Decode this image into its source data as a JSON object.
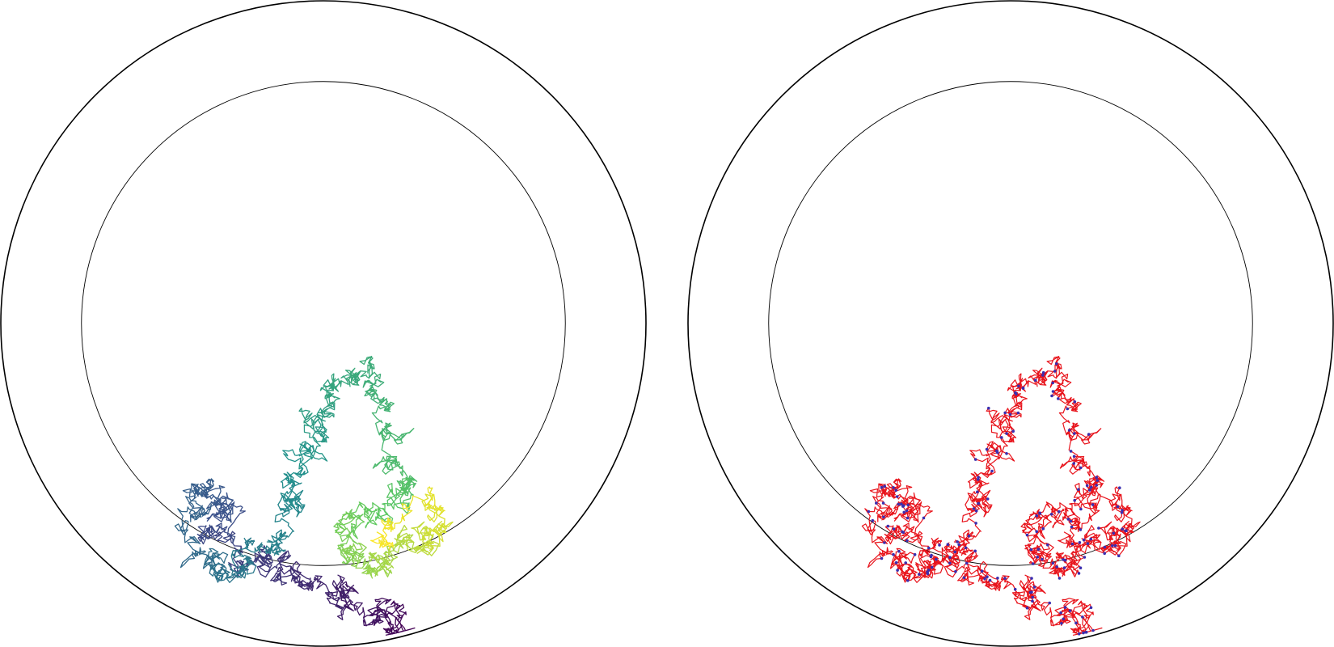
{
  "chart_data": [
    {
      "type": "line",
      "panel": "left",
      "description_color_mode": "viridis-by-time",
      "boundary": {
        "outer_radius": 1.0,
        "inner_radius": 0.75,
        "shape": "circle"
      },
      "xlim": [
        -1.0,
        1.0
      ],
      "ylim": [
        -1.0,
        1.0
      ],
      "grid": false,
      "legend": "none",
      "colormap": [
        "#440154",
        "#3b528b",
        "#21918c",
        "#5ec962",
        "#fde725"
      ],
      "path_waypoints": [
        [
          0.25,
          -0.97
        ],
        [
          0.22,
          -0.92
        ],
        [
          0.15,
          -0.88
        ],
        [
          0.05,
          -0.82
        ],
        [
          -0.05,
          -0.8
        ],
        [
          -0.12,
          -0.74
        ],
        [
          -0.25,
          -0.72
        ],
        [
          -0.35,
          -0.66
        ],
        [
          -0.28,
          -0.58
        ],
        [
          -0.35,
          -0.52
        ],
        [
          -0.42,
          -0.6
        ],
        [
          -0.38,
          -0.74
        ],
        [
          -0.3,
          -0.8
        ],
        [
          -0.2,
          -0.7
        ],
        [
          -0.1,
          -0.62
        ],
        [
          -0.12,
          -0.5
        ],
        [
          -0.05,
          -0.4
        ],
        [
          -0.02,
          -0.3
        ],
        [
          0.05,
          -0.2
        ],
        [
          0.12,
          -0.15
        ],
        [
          0.18,
          -0.25
        ],
        [
          0.22,
          -0.4
        ],
        [
          0.28,
          -0.5
        ],
        [
          0.2,
          -0.58
        ],
        [
          0.1,
          -0.62
        ],
        [
          0.05,
          -0.7
        ],
        [
          0.12,
          -0.78
        ],
        [
          0.22,
          -0.72
        ],
        [
          0.3,
          -0.68
        ],
        [
          0.38,
          -0.62
        ],
        [
          0.3,
          -0.56
        ],
        [
          0.18,
          -0.66
        ]
      ],
      "jitter": 0.018,
      "steps": 2600
    },
    {
      "type": "line",
      "panel": "right",
      "description_color_mode": "single-color-with-points",
      "boundary": {
        "outer_radius": 1.0,
        "inner_radius": 0.75,
        "shape": "circle"
      },
      "xlim": [
        -1.0,
        1.0
      ],
      "ylim": [
        -1.0,
        1.0
      ],
      "grid": false,
      "legend": "none",
      "line_color": "#e8141c",
      "point_color": "#3a2fb0",
      "path_waypoints": [
        [
          0.25,
          -0.97
        ],
        [
          0.22,
          -0.92
        ],
        [
          0.15,
          -0.88
        ],
        [
          0.05,
          -0.82
        ],
        [
          -0.05,
          -0.8
        ],
        [
          -0.12,
          -0.74
        ],
        [
          -0.25,
          -0.72
        ],
        [
          -0.35,
          -0.66
        ],
        [
          -0.28,
          -0.58
        ],
        [
          -0.35,
          -0.52
        ],
        [
          -0.42,
          -0.6
        ],
        [
          -0.38,
          -0.74
        ],
        [
          -0.3,
          -0.8
        ],
        [
          -0.2,
          -0.7
        ],
        [
          -0.1,
          -0.62
        ],
        [
          -0.12,
          -0.5
        ],
        [
          -0.05,
          -0.4
        ],
        [
          -0.02,
          -0.3
        ],
        [
          0.05,
          -0.2
        ],
        [
          0.12,
          -0.15
        ],
        [
          0.18,
          -0.25
        ],
        [
          0.22,
          -0.4
        ],
        [
          0.28,
          -0.5
        ],
        [
          0.2,
          -0.58
        ],
        [
          0.1,
          -0.62
        ],
        [
          0.05,
          -0.7
        ],
        [
          0.12,
          -0.78
        ],
        [
          0.22,
          -0.72
        ],
        [
          0.3,
          -0.68
        ],
        [
          0.38,
          -0.62
        ],
        [
          0.3,
          -0.56
        ],
        [
          0.18,
          -0.66
        ]
      ],
      "jitter": 0.018,
      "steps": 2600,
      "point_every": 14
    }
  ]
}
